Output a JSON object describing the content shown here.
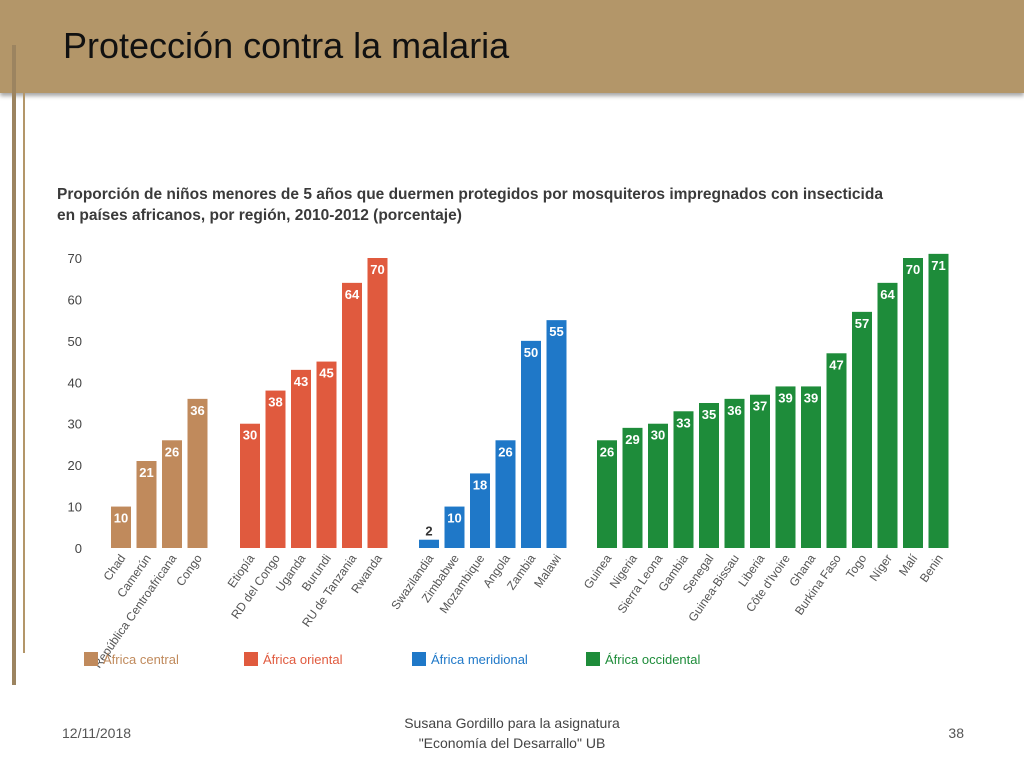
{
  "slide": {
    "title": "Protección contra la malaria",
    "date": "12/11/2018",
    "footer_line1": "Susana Gordillo para la asignatura",
    "footer_line2": "\"Economía del Desarrallo\" UB",
    "page_number": "38"
  },
  "colors": {
    "title_bar": "#b39669",
    "africa_central": "#c08a5c",
    "africa_oriental": "#e05a3e",
    "africa_meridional": "#1f78c8",
    "africa_occidental": "#1e8c3a"
  },
  "chart_data": {
    "type": "bar",
    "title_line1": "Proporción de niños menores de 5 años que duermen protegidos por mosquiteros impregnados con insecticida",
    "title_line2": "en países africanos, por región, 2010-2012 (porcentaje)",
    "ylim": [
      0,
      70
    ],
    "yticks": [
      0,
      10,
      20,
      30,
      40,
      50,
      60,
      70
    ],
    "grid": false,
    "legend_position": "bottom",
    "series": [
      {
        "name": "África central",
        "color": "#c08a5c",
        "categories": [
          "Chad",
          "Camerún",
          "República Centroafricana",
          "Congo"
        ],
        "values": [
          10,
          21,
          26,
          36
        ]
      },
      {
        "name": "África oriental",
        "color": "#e05a3e",
        "categories": [
          "Etiopía",
          "RD del Congo",
          "Uganda",
          "Burundi",
          "RU de Tanzania",
          "Rwanda"
        ],
        "values": [
          30,
          38,
          43,
          45,
          64,
          70
        ]
      },
      {
        "name": "África meridional",
        "color": "#1f78c8",
        "categories": [
          "Swazilandia",
          "Zimbabwe",
          "Mozambique",
          "Angola",
          "Zambia",
          "Malawi"
        ],
        "values": [
          2,
          10,
          18,
          26,
          50,
          55
        ]
      },
      {
        "name": "África occidental",
        "color": "#1e8c3a",
        "categories": [
          "Guinea",
          "Nigeria",
          "Sierra Leona",
          "Gambia",
          "Senegal",
          "Guinea-Bissau",
          "Liberia",
          "Côte d'Ivoire",
          "Ghana",
          "Burkina Faso",
          "Togo",
          "Níger",
          "Malí",
          "Benin"
        ],
        "values": [
          26,
          29,
          30,
          33,
          35,
          36,
          37,
          39,
          39,
          47,
          57,
          64,
          70,
          71
        ]
      }
    ]
  }
}
